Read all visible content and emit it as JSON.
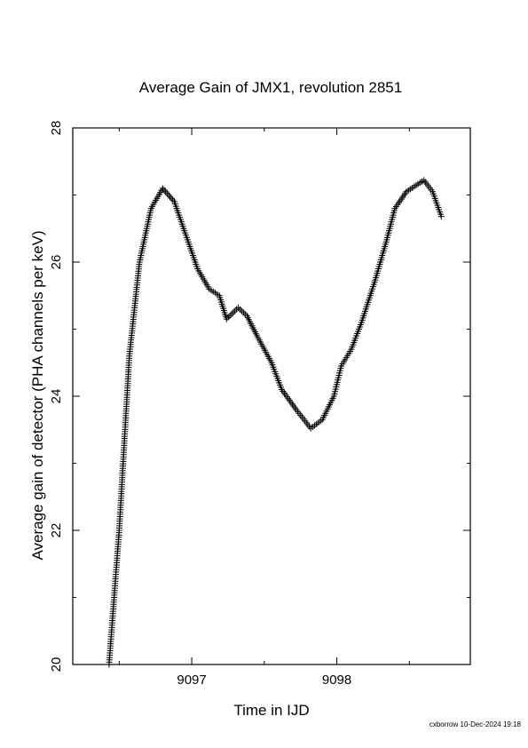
{
  "chart_data": {
    "type": "scatter",
    "title": "Average Gain of JMX1, revolution 2851",
    "xlabel": "Time in IJD",
    "ylabel": "Average gain of detector (PHA channels per keV)",
    "xlim": [
      9096.18,
      9098.92
    ],
    "ylim": [
      20,
      28
    ],
    "xticks": [
      9097,
      9098
    ],
    "yticks": [
      20,
      22,
      24,
      26,
      28
    ],
    "x_minor_ticks": [
      9096.5,
      9097.5,
      9098.5
    ],
    "y_minor_ticks": [
      21,
      23,
      25,
      27
    ],
    "marker": "plus",
    "marker_color": "#000000",
    "grid": false,
    "curve_keypoints": [
      [
        9096.43,
        20.0
      ],
      [
        9096.5,
        22.0
      ],
      [
        9096.57,
        24.6
      ],
      [
        9096.64,
        26.0
      ],
      [
        9096.72,
        26.8
      ],
      [
        9096.8,
        27.1
      ],
      [
        9096.88,
        26.9
      ],
      [
        9096.96,
        26.4
      ],
      [
        9097.04,
        25.9
      ],
      [
        9097.12,
        25.6
      ],
      [
        9097.19,
        25.5
      ],
      [
        9097.24,
        25.15
      ],
      [
        9097.32,
        25.32
      ],
      [
        9097.38,
        25.2
      ],
      [
        9097.45,
        24.9
      ],
      [
        9097.55,
        24.5
      ],
      [
        9097.62,
        24.1
      ],
      [
        9097.72,
        23.8
      ],
      [
        9097.82,
        23.52
      ],
      [
        9097.9,
        23.65
      ],
      [
        9097.98,
        24.0
      ],
      [
        9098.03,
        24.45
      ],
      [
        9098.1,
        24.7
      ],
      [
        9098.17,
        25.1
      ],
      [
        9098.26,
        25.7
      ],
      [
        9098.34,
        26.3
      ],
      [
        9098.4,
        26.8
      ],
      [
        9098.48,
        27.05
      ],
      [
        9098.6,
        27.22
      ],
      [
        9098.66,
        27.05
      ],
      [
        9098.72,
        26.68
      ]
    ]
  },
  "footer": "cxborrow 10-Dec-2024 19:18"
}
